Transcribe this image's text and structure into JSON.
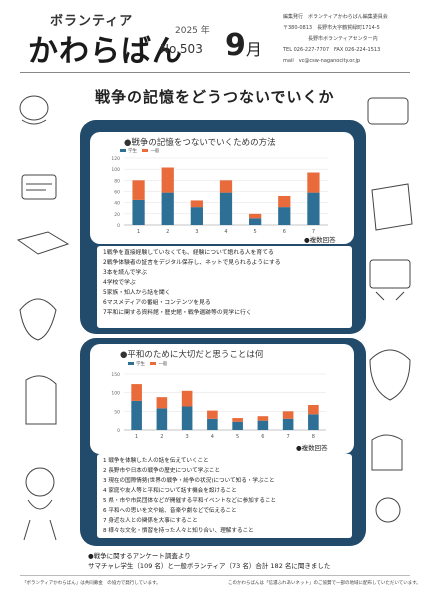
{
  "masthead": {
    "subtitle": "ボランティア",
    "title": "かわらばん",
    "year": "2025 年",
    "issue_no": "No.503",
    "month_num": "9",
    "month_unit": "月"
  },
  "publisher": {
    "lines": [
      "編集発行　ボランティアかわらばん編集委員会",
      "〒380-0813　長野市大字鶴賀緑町1714-5",
      "　　　　　長野市ボランティアセンター内",
      "TEL 026-227-7707　FAX 026-224-1513",
      "mail　vc@csw-naganocity.or.jp"
    ]
  },
  "headline": "戦争の記憶をどうつないでいくか",
  "panel1": {
    "chart_title": "●戦争の記憶をつないでいくための方法",
    "multiple_answers": "●複数回答",
    "items": [
      "1戦争を直接経験していなくても、経験について語れる人を育てる",
      "2戦争体験者の証言をデジタル保存し、ネットで見られるようにする",
      "3本を読んで学ぶ",
      "4学校で学ぶ",
      "5家族・知人から話を聞く",
      "6マスメディアの番組・コンテンツを見る",
      "7平和に関する資料館・歴史館・戦争遺跡等の見学に行く"
    ]
  },
  "panel2": {
    "chart_title": "●平和のために大切だと思うことは何",
    "multiple_answers": "●複数回答",
    "items": [
      "1 戦争を体験した人の話を伝えていくこと",
      "2 長野市や日本の戦争の歴史について学ぶこと",
      "3 現在の国際情勢(世界の戦争・紛争の状況)について知る・学ぶこと",
      "4 家庭や友人等と平和について話す機会を設けること",
      "5 県・市や市民団体などが開催する平和イベントなどに参加すること",
      "6 平和への思いを文や絵、音楽や劇などで伝えること",
      "7 身近な人との関係を大事にすること",
      "8 様々な文化・慣習を持った人々と知り合い、理解すること"
    ]
  },
  "footer": {
    "note1": "●戦争に関するアンケート調査より",
    "note2": "サマチャレ学生（109 名）と一般ボランティア（73 名）合計 182 名に聞きました",
    "bottom_left": "「ボランティアかわらばん」は共同募金　の協力で発行しています。",
    "bottom_right": "このかわらばんは「信濃ふれあいネット」のご協賛で一部の地域に配布していただいています。"
  },
  "colors": {
    "panel": "#214a6b",
    "student": "#2e6f96",
    "general": "#e96a3b"
  },
  "chart_data": [
    {
      "type": "bar",
      "stacked": true,
      "title": "●戦争の記憶をつないでいくための方法",
      "categories": [
        "1",
        "2",
        "3",
        "4",
        "5",
        "6",
        "7"
      ],
      "series": [
        {
          "name": "学生",
          "values": [
            45,
            58,
            32,
            58,
            12,
            32,
            58
          ]
        },
        {
          "name": "一般",
          "values": [
            35,
            45,
            12,
            22,
            8,
            20,
            36
          ]
        }
      ],
      "y_ticks": [
        0,
        20,
        40,
        60,
        80,
        100,
        120
      ],
      "ylim": [
        0,
        120
      ],
      "legend": "top-left"
    },
    {
      "type": "bar",
      "stacked": true,
      "title": "●平和のために大切だと思うことは何",
      "categories": [
        "1",
        "2",
        "3",
        "4",
        "5",
        "6",
        "7",
        "8"
      ],
      "series": [
        {
          "name": "学生",
          "values": [
            78,
            58,
            63,
            30,
            22,
            25,
            30,
            42
          ]
        },
        {
          "name": "一般",
          "values": [
            45,
            30,
            42,
            22,
            10,
            12,
            20,
            25
          ]
        }
      ],
      "y_ticks": [
        0,
        50,
        100,
        150
      ],
      "ylim": [
        0,
        150
      ],
      "legend": "top-left"
    }
  ]
}
